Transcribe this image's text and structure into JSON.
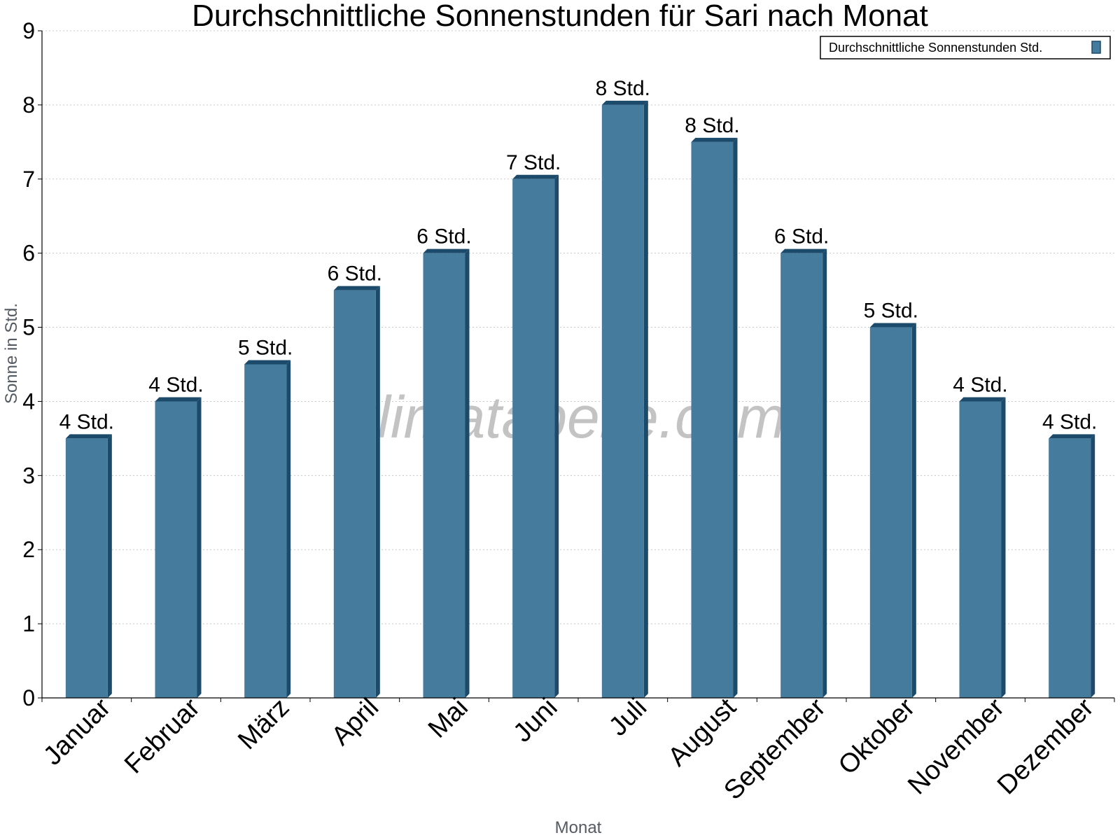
{
  "chart_data": {
    "type": "bar",
    "title": "Durchschnittliche Sonnenstunden für Sari nach Monat",
    "xlabel": "Monat",
    "ylabel": "Sonne in Std.",
    "ylim": [
      0,
      9
    ],
    "yticks": [
      0,
      1,
      2,
      3,
      4,
      5,
      6,
      7,
      8,
      9
    ],
    "grid": true,
    "legend_position": "top-right",
    "categories": [
      "Januar",
      "Februar",
      "März",
      "April",
      "Mai",
      "Juni",
      "Juli",
      "August",
      "September",
      "Oktober",
      "November",
      "Dezember"
    ],
    "series": [
      {
        "name": "Durchschnittliche Sonnenstunden Std.",
        "values": [
          3.5,
          4,
          4.5,
          5.5,
          6,
          7,
          8,
          7.5,
          6,
          5,
          4,
          3.5
        ],
        "labels": [
          "4 Std.",
          "4 Std.",
          "5 Std.",
          "6 Std.",
          "6 Std.",
          "7 Std.",
          "8 Std.",
          "8 Std.",
          "6 Std.",
          "5 Std.",
          "4 Std.",
          "4 Std."
        ],
        "color": "#457b9d",
        "edge_color": "#1b4a6b"
      }
    ],
    "watermark": "klimatabelle.com"
  }
}
